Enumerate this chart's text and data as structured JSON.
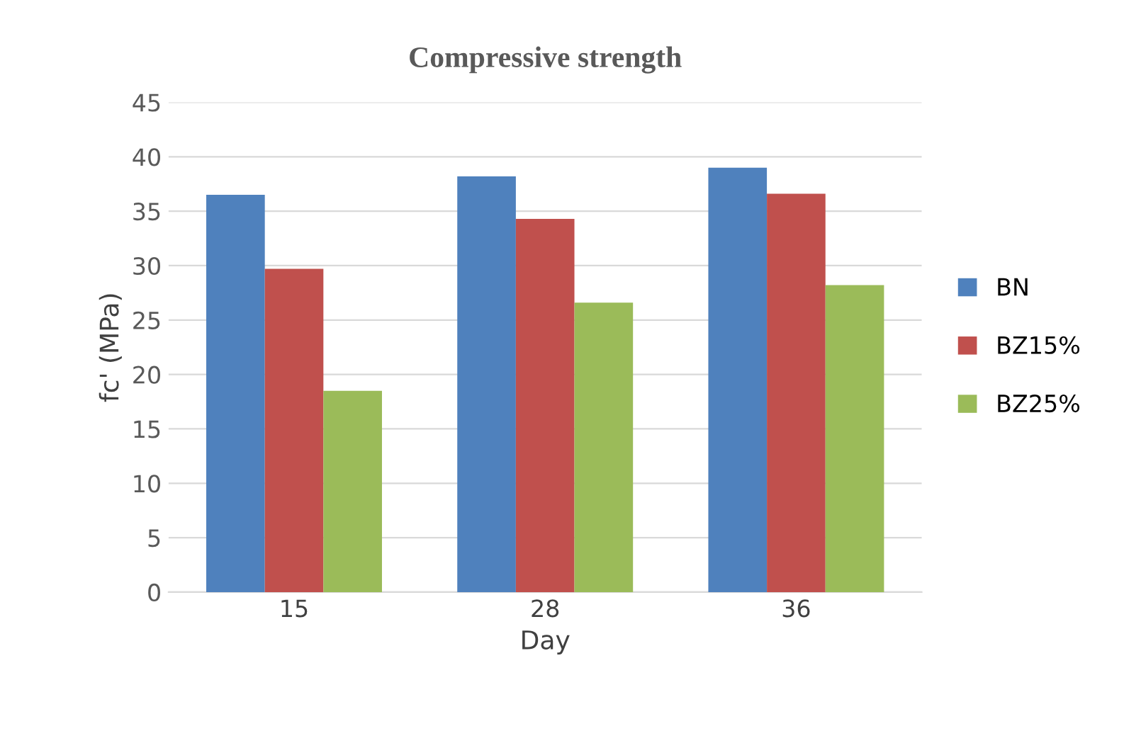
{
  "chart_data": {
    "type": "bar",
    "title": "Compressive strength",
    "xlabel": "Day",
    "ylabel": "fc' (MPa)",
    "categories": [
      "15",
      "28",
      "36"
    ],
    "series": [
      {
        "name": "BN",
        "color": "#4f81bd",
        "values": [
          36.5,
          38.2,
          39.0
        ]
      },
      {
        "name": "BZ15%",
        "color": "#c0504d",
        "values": [
          29.7,
          34.3,
          36.6
        ]
      },
      {
        "name": "BZ25%",
        "color": "#9bbb59",
        "values": [
          18.5,
          26.6,
          28.2
        ]
      }
    ],
    "ylim": [
      0,
      45
    ],
    "yticks": [
      0,
      5,
      10,
      15,
      20,
      25,
      30,
      35,
      40,
      45
    ],
    "grid": "y",
    "legend": "right"
  }
}
